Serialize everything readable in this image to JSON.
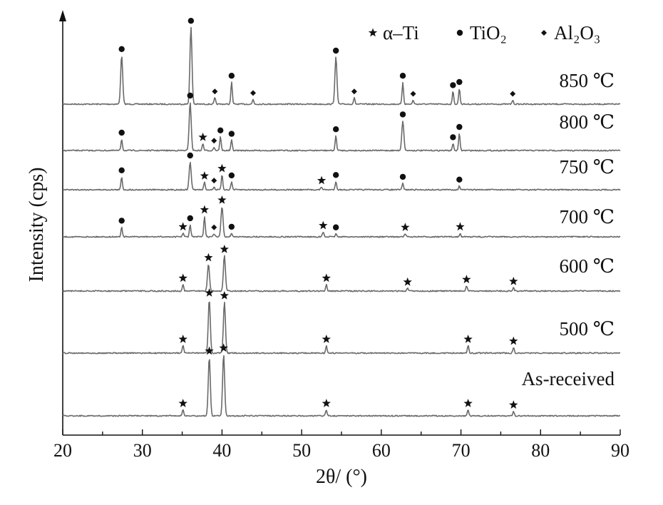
{
  "chart_data": {
    "type": "line",
    "title": "",
    "xlabel": "2θ/ (°)",
    "ylabel": "Intensity (cps)",
    "xlim": [
      20,
      90
    ],
    "x_ticks": [
      20,
      30,
      40,
      50,
      60,
      70,
      80,
      90
    ],
    "y_ticks": [],
    "grid": false,
    "legend_position": "top-right",
    "legend": [
      {
        "symbol": "star",
        "label": "α–Ti"
      },
      {
        "symbol": "circle",
        "label": "TiO₂"
      },
      {
        "symbol": "diamond",
        "label": "Al₂O₃"
      }
    ],
    "series": [
      {
        "name": "850 ℃",
        "peaks": [
          {
            "x": 27.4,
            "h": 0.62,
            "phase": "circle"
          },
          {
            "x": 36.1,
            "h": 0.98,
            "phase": "circle"
          },
          {
            "x": 39.1,
            "h": 0.08,
            "phase": "diamond"
          },
          {
            "x": 41.2,
            "h": 0.28,
            "phase": "circle"
          },
          {
            "x": 43.9,
            "h": 0.06,
            "phase": "diamond"
          },
          {
            "x": 54.3,
            "h": 0.6,
            "phase": "circle"
          },
          {
            "x": 56.6,
            "h": 0.08,
            "phase": "diamond"
          },
          {
            "x": 62.7,
            "h": 0.28,
            "phase": "circle"
          },
          {
            "x": 64.0,
            "h": 0.05,
            "phase": "diamond"
          },
          {
            "x": 69.0,
            "h": 0.16,
            "phase": "circle"
          },
          {
            "x": 69.8,
            "h": 0.2,
            "phase": "circle"
          },
          {
            "x": 76.5,
            "h": 0.05,
            "phase": "diamond"
          }
        ]
      },
      {
        "name": "800 ℃",
        "peaks": [
          {
            "x": 27.4,
            "h": 0.2,
            "phase": "circle"
          },
          {
            "x": 36.0,
            "h": 0.85,
            "phase": "circle"
          },
          {
            "x": 37.6,
            "h": 0.12,
            "phase": "star"
          },
          {
            "x": 39.0,
            "h": 0.06,
            "phase": "diamond"
          },
          {
            "x": 39.8,
            "h": 0.24,
            "phase": "circle"
          },
          {
            "x": 41.2,
            "h": 0.18,
            "phase": "circle"
          },
          {
            "x": 54.3,
            "h": 0.26,
            "phase": "circle"
          },
          {
            "x": 62.7,
            "h": 0.52,
            "phase": "circle"
          },
          {
            "x": 69.0,
            "h": 0.12,
            "phase": "circle"
          },
          {
            "x": 69.8,
            "h": 0.3,
            "phase": "circle"
          }
        ]
      },
      {
        "name": "750 ℃",
        "peaks": [
          {
            "x": 27.4,
            "h": 0.28,
            "phase": "circle"
          },
          {
            "x": 36.0,
            "h": 0.6,
            "phase": "circle"
          },
          {
            "x": 37.8,
            "h": 0.16,
            "phase": "star"
          },
          {
            "x": 39.0,
            "h": 0.06,
            "phase": "diamond"
          },
          {
            "x": 40.0,
            "h": 0.32,
            "phase": "star"
          },
          {
            "x": 41.2,
            "h": 0.17,
            "phase": "circle"
          },
          {
            "x": 52.5,
            "h": 0.06,
            "phase": "star"
          },
          {
            "x": 54.3,
            "h": 0.18,
            "phase": "circle"
          },
          {
            "x": 62.7,
            "h": 0.14,
            "phase": "circle"
          },
          {
            "x": 69.8,
            "h": 0.08,
            "phase": "circle"
          }
        ]
      },
      {
        "name": "700 ℃",
        "peaks": [
          {
            "x": 27.4,
            "h": 0.16,
            "phase": "circle"
          },
          {
            "x": 35.1,
            "h": 0.06,
            "phase": "star"
          },
          {
            "x": 36.0,
            "h": 0.2,
            "phase": "circle"
          },
          {
            "x": 37.8,
            "h": 0.34,
            "phase": "star"
          },
          {
            "x": 39.0,
            "h": 0.05,
            "phase": "diamond"
          },
          {
            "x": 40.0,
            "h": 0.5,
            "phase": "star"
          },
          {
            "x": 41.2,
            "h": 0.06,
            "phase": "circle"
          },
          {
            "x": 52.7,
            "h": 0.08,
            "phase": "star"
          },
          {
            "x": 54.3,
            "h": 0.05,
            "phase": "circle"
          },
          {
            "x": 63.0,
            "h": 0.05,
            "phase": "star"
          },
          {
            "x": 69.9,
            "h": 0.06,
            "phase": "star"
          }
        ]
      },
      {
        "name": "600 ℃",
        "peaks": [
          {
            "x": 35.1,
            "h": 0.1,
            "phase": "star"
          },
          {
            "x": 38.3,
            "h": 0.42,
            "phase": "star"
          },
          {
            "x": 40.3,
            "h": 0.55,
            "phase": "star"
          },
          {
            "x": 53.1,
            "h": 0.1,
            "phase": "star"
          },
          {
            "x": 63.3,
            "h": 0.04,
            "phase": "star"
          },
          {
            "x": 70.7,
            "h": 0.08,
            "phase": "star"
          },
          {
            "x": 76.6,
            "h": 0.05,
            "phase": "star"
          }
        ]
      },
      {
        "name": "500 ℃",
        "peaks": [
          {
            "x": 35.1,
            "h": 0.08,
            "phase": "star"
          },
          {
            "x": 38.4,
            "h": 0.58,
            "phase": "star"
          },
          {
            "x": 40.3,
            "h": 0.55,
            "phase": "star"
          },
          {
            "x": 53.1,
            "h": 0.08,
            "phase": "star"
          },
          {
            "x": 70.9,
            "h": 0.08,
            "phase": "star"
          },
          {
            "x": 76.6,
            "h": 0.06,
            "phase": "star"
          }
        ]
      },
      {
        "name": "As-received",
        "peaks": [
          {
            "x": 35.1,
            "h": 0.08,
            "phase": "star"
          },
          {
            "x": 38.4,
            "h": 0.78,
            "phase": "star"
          },
          {
            "x": 40.2,
            "h": 0.82,
            "phase": "star"
          },
          {
            "x": 53.1,
            "h": 0.08,
            "phase": "star"
          },
          {
            "x": 70.9,
            "h": 0.08,
            "phase": "star"
          },
          {
            "x": 76.6,
            "h": 0.06,
            "phase": "star"
          }
        ]
      }
    ]
  }
}
